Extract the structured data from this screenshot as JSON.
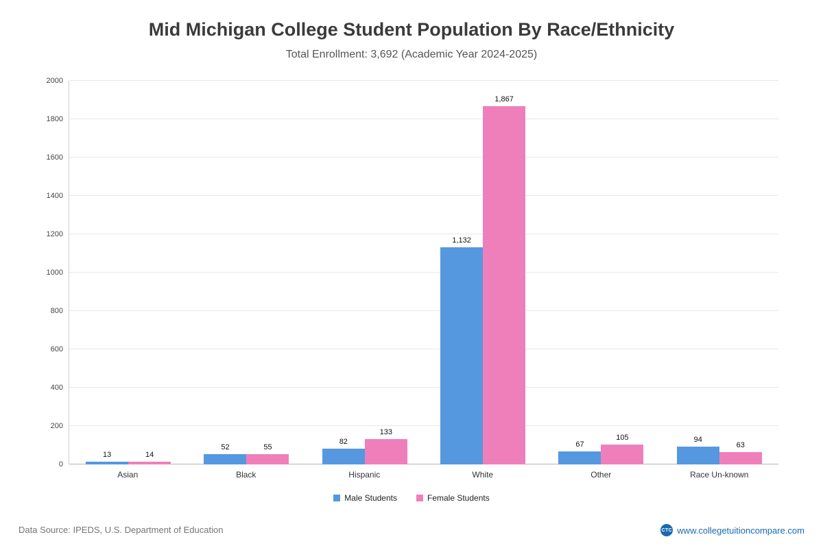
{
  "page": {
    "title": "Mid Michigan College Student Population By Race/Ethnicity",
    "subtitle": "Total Enrollment: 3,692 (Academic Year 2024-2025)"
  },
  "footer": {
    "source": "Data Source: IPEDS, U.S. Department of Education",
    "site": "www.collegetuitioncompare.com",
    "site_icon": "CTC"
  },
  "colors": {
    "male": "#5598e0",
    "female": "#ef7fba",
    "link_blue": "#1a6ab0"
  },
  "chart_data": {
    "type": "bar",
    "title": "Mid Michigan College Student Population By Race/Ethnicity",
    "subtitle": "Total Enrollment: 3,692 (Academic Year 2024-2025)",
    "categories": [
      "Asian",
      "Black",
      "Hispanic",
      "White",
      "Other",
      "Race Un-known"
    ],
    "series": [
      {
        "name": "Male Students",
        "color": "#5598e0",
        "values": [
          13,
          52,
          82,
          1132,
          67,
          94
        ]
      },
      {
        "name": "Female Students",
        "color": "#ef7fba",
        "values": [
          14,
          55,
          133,
          1867,
          105,
          63
        ]
      }
    ],
    "xlabel": "",
    "ylabel": "",
    "ylim": [
      0,
      2000
    ],
    "ytick_interval": 200,
    "grid": true,
    "legend_position": "bottom"
  }
}
